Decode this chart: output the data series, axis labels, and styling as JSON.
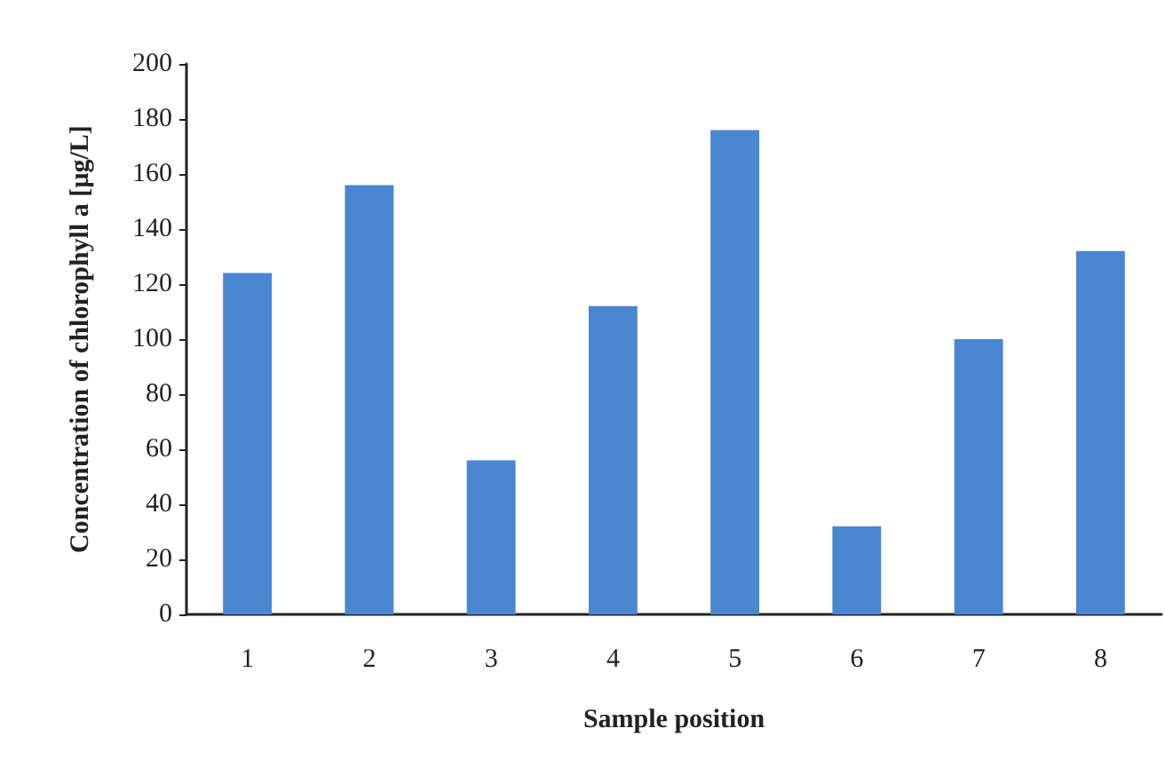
{
  "chart_data": {
    "type": "bar",
    "xlabel": "Sample position",
    "ylabel": "Concentration of chlorophyll a [µg/L]",
    "categories": [
      "1",
      "2",
      "3",
      "4",
      "5",
      "6",
      "7",
      "8"
    ],
    "values": [
      124,
      156,
      56,
      112,
      176,
      32,
      100,
      132
    ],
    "color": "#4a86d0",
    "ylim": [
      0,
      200
    ],
    "yticks": [
      0,
      20,
      40,
      60,
      80,
      100,
      120,
      140,
      160,
      180,
      200
    ],
    "grid": false
  }
}
